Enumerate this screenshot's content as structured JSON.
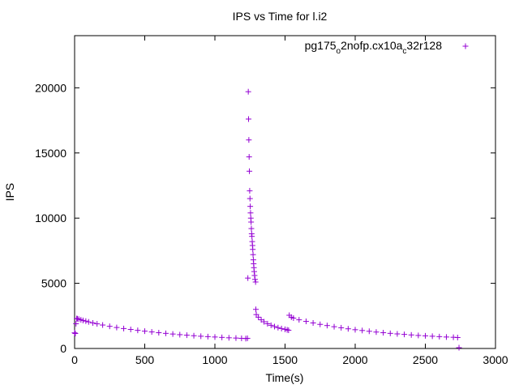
{
  "chart_data": {
    "type": "scatter",
    "title": "IPS vs Time for l.i2",
    "xlabel": "Time(s)",
    "ylabel": "IPS",
    "xlim": [
      0,
      3000
    ],
    "ylim": [
      0,
      24000
    ],
    "x_ticks": [
      0,
      500,
      1000,
      1500,
      2000,
      2500,
      3000
    ],
    "y_ticks": [
      0,
      5000,
      10000,
      15000,
      20000
    ],
    "grid": false,
    "legend_position": "top-right",
    "marker": "plus",
    "color": "#9400d3",
    "series": [
      {
        "legend": {
          "base": "pg175",
          "sub1": "o",
          "mid": "2nofp.cx10a",
          "sub2": "c",
          "tail": "32r128"
        },
        "points": [
          [
            0,
            1200
          ],
          [
            5,
            1150
          ],
          [
            10,
            1900
          ],
          [
            15,
            2300
          ],
          [
            20,
            2280
          ],
          [
            30,
            2250
          ],
          [
            45,
            2200
          ],
          [
            60,
            2150
          ],
          [
            80,
            2100
          ],
          [
            100,
            2040
          ],
          [
            130,
            1960
          ],
          [
            160,
            1890
          ],
          [
            200,
            1800
          ],
          [
            250,
            1700
          ],
          [
            300,
            1610
          ],
          [
            350,
            1530
          ],
          [
            400,
            1460
          ],
          [
            450,
            1390
          ],
          [
            500,
            1330
          ],
          [
            550,
            1270
          ],
          [
            600,
            1210
          ],
          [
            650,
            1160
          ],
          [
            700,
            1110
          ],
          [
            750,
            1060
          ],
          [
            800,
            1020
          ],
          [
            850,
            980
          ],
          [
            900,
            940
          ],
          [
            950,
            910
          ],
          [
            1000,
            880
          ],
          [
            1050,
            850
          ],
          [
            1100,
            820
          ],
          [
            1150,
            800
          ],
          [
            1190,
            780
          ],
          [
            1220,
            760
          ],
          [
            1232,
            780
          ],
          [
            1235,
            5400
          ],
          [
            1238,
            19700
          ],
          [
            1240,
            17600
          ],
          [
            1242,
            16000
          ],
          [
            1244,
            14700
          ],
          [
            1246,
            13600
          ],
          [
            1248,
            12100
          ],
          [
            1250,
            11500
          ],
          [
            1252,
            10900
          ],
          [
            1254,
            10400
          ],
          [
            1256,
            10000
          ],
          [
            1258,
            9700
          ],
          [
            1260,
            9200
          ],
          [
            1262,
            8800
          ],
          [
            1264,
            8600
          ],
          [
            1266,
            8200
          ],
          [
            1268,
            7900
          ],
          [
            1270,
            7600
          ],
          [
            1272,
            7200
          ],
          [
            1274,
            6800
          ],
          [
            1276,
            6500
          ],
          [
            1278,
            6200
          ],
          [
            1280,
            5900
          ],
          [
            1283,
            5600
          ],
          [
            1286,
            5300
          ],
          [
            1290,
            5100
          ],
          [
            1292,
            3000
          ],
          [
            1295,
            2600
          ],
          [
            1310,
            2400
          ],
          [
            1330,
            2200
          ],
          [
            1350,
            2050
          ],
          [
            1375,
            1900
          ],
          [
            1400,
            1780
          ],
          [
            1425,
            1680
          ],
          [
            1450,
            1600
          ],
          [
            1475,
            1530
          ],
          [
            1500,
            1470
          ],
          [
            1515,
            1430
          ],
          [
            1525,
            1400
          ],
          [
            1530,
            2550
          ],
          [
            1545,
            2400
          ],
          [
            1560,
            2330
          ],
          [
            1600,
            2200
          ],
          [
            1650,
            2080
          ],
          [
            1700,
            1960
          ],
          [
            1750,
            1850
          ],
          [
            1800,
            1760
          ],
          [
            1850,
            1670
          ],
          [
            1900,
            1590
          ],
          [
            1950,
            1510
          ],
          [
            2000,
            1440
          ],
          [
            2050,
            1380
          ],
          [
            2100,
            1320
          ],
          [
            2150,
            1260
          ],
          [
            2200,
            1210
          ],
          [
            2250,
            1160
          ],
          [
            2300,
            1120
          ],
          [
            2350,
            1080
          ],
          [
            2400,
            1040
          ],
          [
            2450,
            1000
          ],
          [
            2500,
            970
          ],
          [
            2550,
            940
          ],
          [
            2600,
            910
          ],
          [
            2650,
            880
          ],
          [
            2700,
            860
          ],
          [
            2730,
            840
          ],
          [
            2740,
            60
          ]
        ]
      }
    ]
  }
}
